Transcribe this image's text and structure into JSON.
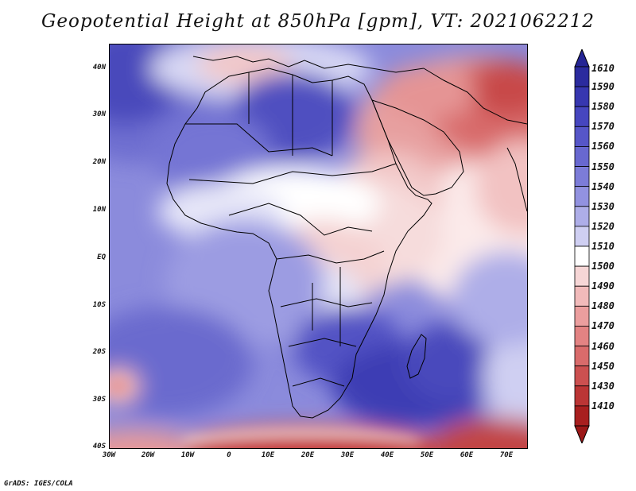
{
  "title": "Geopotential Height at 850hPa [gpm], VT: 2021062212",
  "credit": "GrADS: IGES/COLA",
  "lat_labels": [
    "40N",
    "30N",
    "20N",
    "10N",
    "EQ",
    "10S",
    "20S",
    "30S",
    "40S"
  ],
  "lon_labels": [
    "30W",
    "20W",
    "10W",
    "0",
    "10E",
    "20E",
    "30E",
    "40E",
    "50E",
    "60E",
    "70E"
  ],
  "colorbar": {
    "levels": [
      "1610",
      "1590",
      "1580",
      "1570",
      "1560",
      "1550",
      "1540",
      "1530",
      "1520",
      "1510",
      "1500",
      "1490",
      "1480",
      "1470",
      "1460",
      "1450",
      "1430",
      "1410"
    ],
    "colors": [
      "#2b2b9e",
      "#3737b0",
      "#4646bf",
      "#5656c8",
      "#6868d0",
      "#7c7cd8",
      "#9292e0",
      "#aeaee8",
      "#cfcff2",
      "#ffffff",
      "#f6d6d6",
      "#f1baba",
      "#eb9e9e",
      "#e38383",
      "#d96b6b",
      "#cc5050",
      "#bb3535",
      "#a81f1f"
    ],
    "top_arrow_color": "#252595",
    "bottom_arrow_color": "#9c1818"
  },
  "colors": {
    "land_outline": "#000000",
    "ocean_base": "#8888dc"
  }
}
